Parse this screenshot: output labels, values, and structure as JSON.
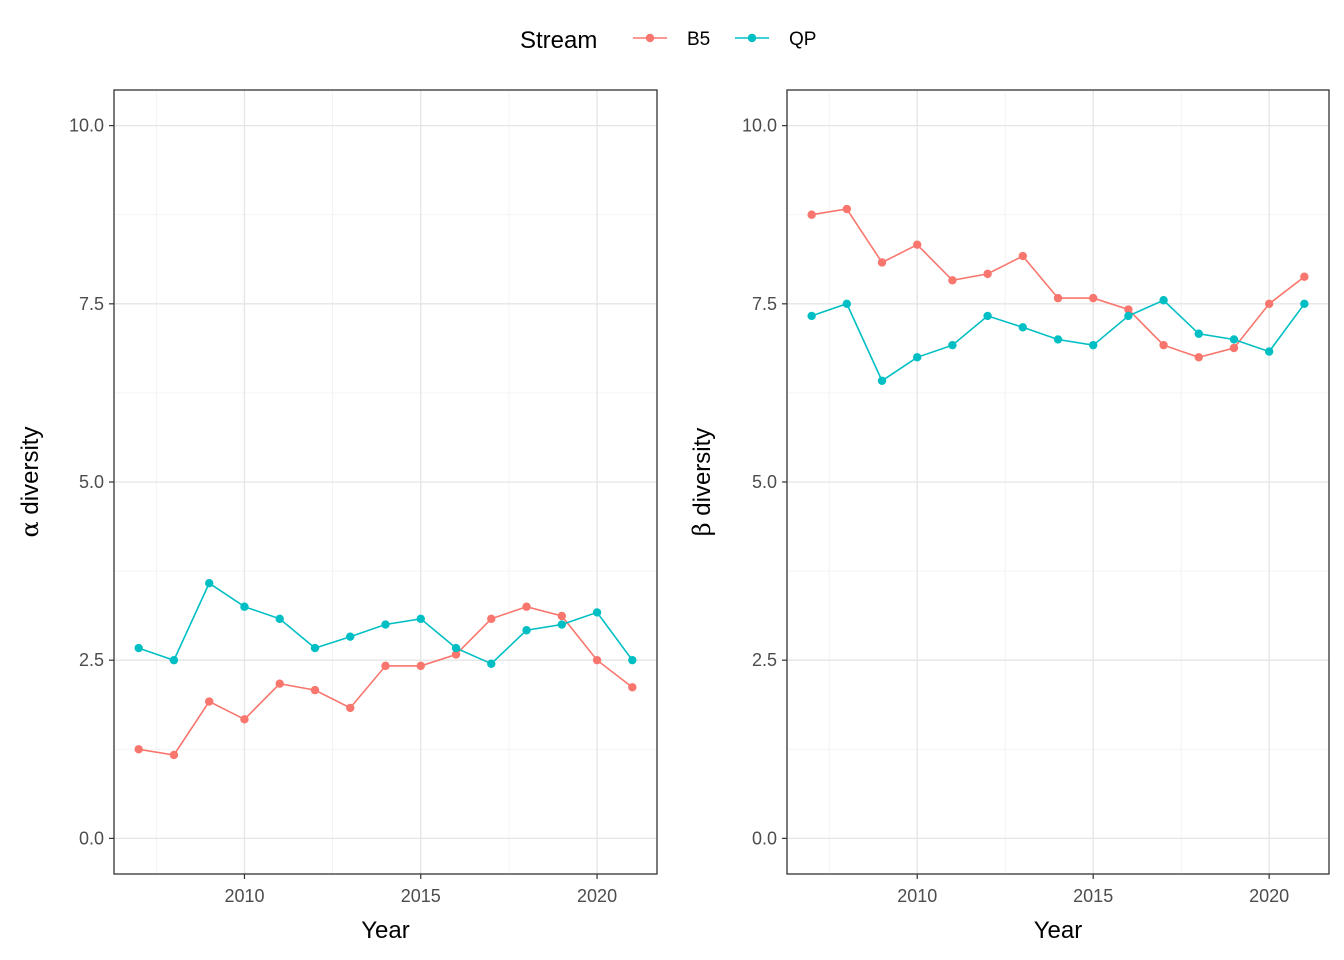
{
  "legend": {
    "title": "Stream",
    "entries": [
      {
        "label": "B5",
        "color": "#F8766D"
      },
      {
        "label": "QP",
        "color": "#00BFC4"
      }
    ]
  },
  "chart_data": [
    {
      "type": "line",
      "title": "",
      "xlabel": "Year",
      "ylabel_greek": "α",
      "ylabel_text": " diversity",
      "xlim": [
        2006.3,
        2021.7
      ],
      "ylim": [
        -0.5,
        10.5
      ],
      "xticks": [
        2010,
        2015,
        2020
      ],
      "xtick_labels": [
        "2010",
        "2015",
        "2020"
      ],
      "yticks": [
        0,
        2.5,
        5,
        7.5,
        10
      ],
      "ytick_labels": [
        "0.0",
        "2.5",
        "5.0",
        "7.5",
        "10.0"
      ],
      "x": [
        2007,
        2008,
        2009,
        2010,
        2011,
        2012,
        2013,
        2014,
        2015,
        2016,
        2017,
        2018,
        2019,
        2020,
        2021
      ],
      "series": [
        {
          "name": "B5",
          "color": "#F8766D",
          "values": [
            1.25,
            1.17,
            1.92,
            1.67,
            2.17,
            2.08,
            1.83,
            2.42,
            2.42,
            2.58,
            3.08,
            3.25,
            3.12,
            2.5,
            2.12
          ]
        },
        {
          "name": "QP",
          "color": "#00BFC4",
          "values": [
            2.67,
            2.5,
            3.58,
            3.25,
            3.08,
            2.67,
            2.83,
            3.0,
            3.08,
            2.67,
            2.45,
            2.92,
            3.0,
            3.17,
            2.5
          ]
        }
      ],
      "grid": true,
      "legend_position": "top"
    },
    {
      "type": "line",
      "title": "",
      "xlabel": "Year",
      "ylabel_greek": "β",
      "ylabel_text": " diversity",
      "xlim": [
        2006.3,
        2021.7
      ],
      "ylim": [
        -0.5,
        10.5
      ],
      "xticks": [
        2010,
        2015,
        2020
      ],
      "xtick_labels": [
        "2010",
        "2015",
        "2020"
      ],
      "yticks": [
        0,
        2.5,
        5,
        7.5,
        10
      ],
      "ytick_labels": [
        "0.0",
        "2.5",
        "5.0",
        "7.5",
        "10.0"
      ],
      "x": [
        2007,
        2008,
        2009,
        2010,
        2011,
        2012,
        2013,
        2014,
        2015,
        2016,
        2017,
        2018,
        2019,
        2020,
        2021
      ],
      "series": [
        {
          "name": "B5",
          "color": "#F8766D",
          "values": [
            8.75,
            8.83,
            8.08,
            8.33,
            7.83,
            7.92,
            8.17,
            7.58,
            7.58,
            7.42,
            6.92,
            6.75,
            6.88,
            7.5,
            7.88
          ]
        },
        {
          "name": "QP",
          "color": "#00BFC4",
          "values": [
            7.33,
            7.5,
            6.42,
            6.75,
            6.92,
            7.33,
            7.17,
            7.0,
            6.92,
            7.33,
            7.55,
            7.08,
            7.0,
            6.83,
            7.5
          ]
        }
      ],
      "grid": true,
      "legend_position": "top"
    }
  ]
}
